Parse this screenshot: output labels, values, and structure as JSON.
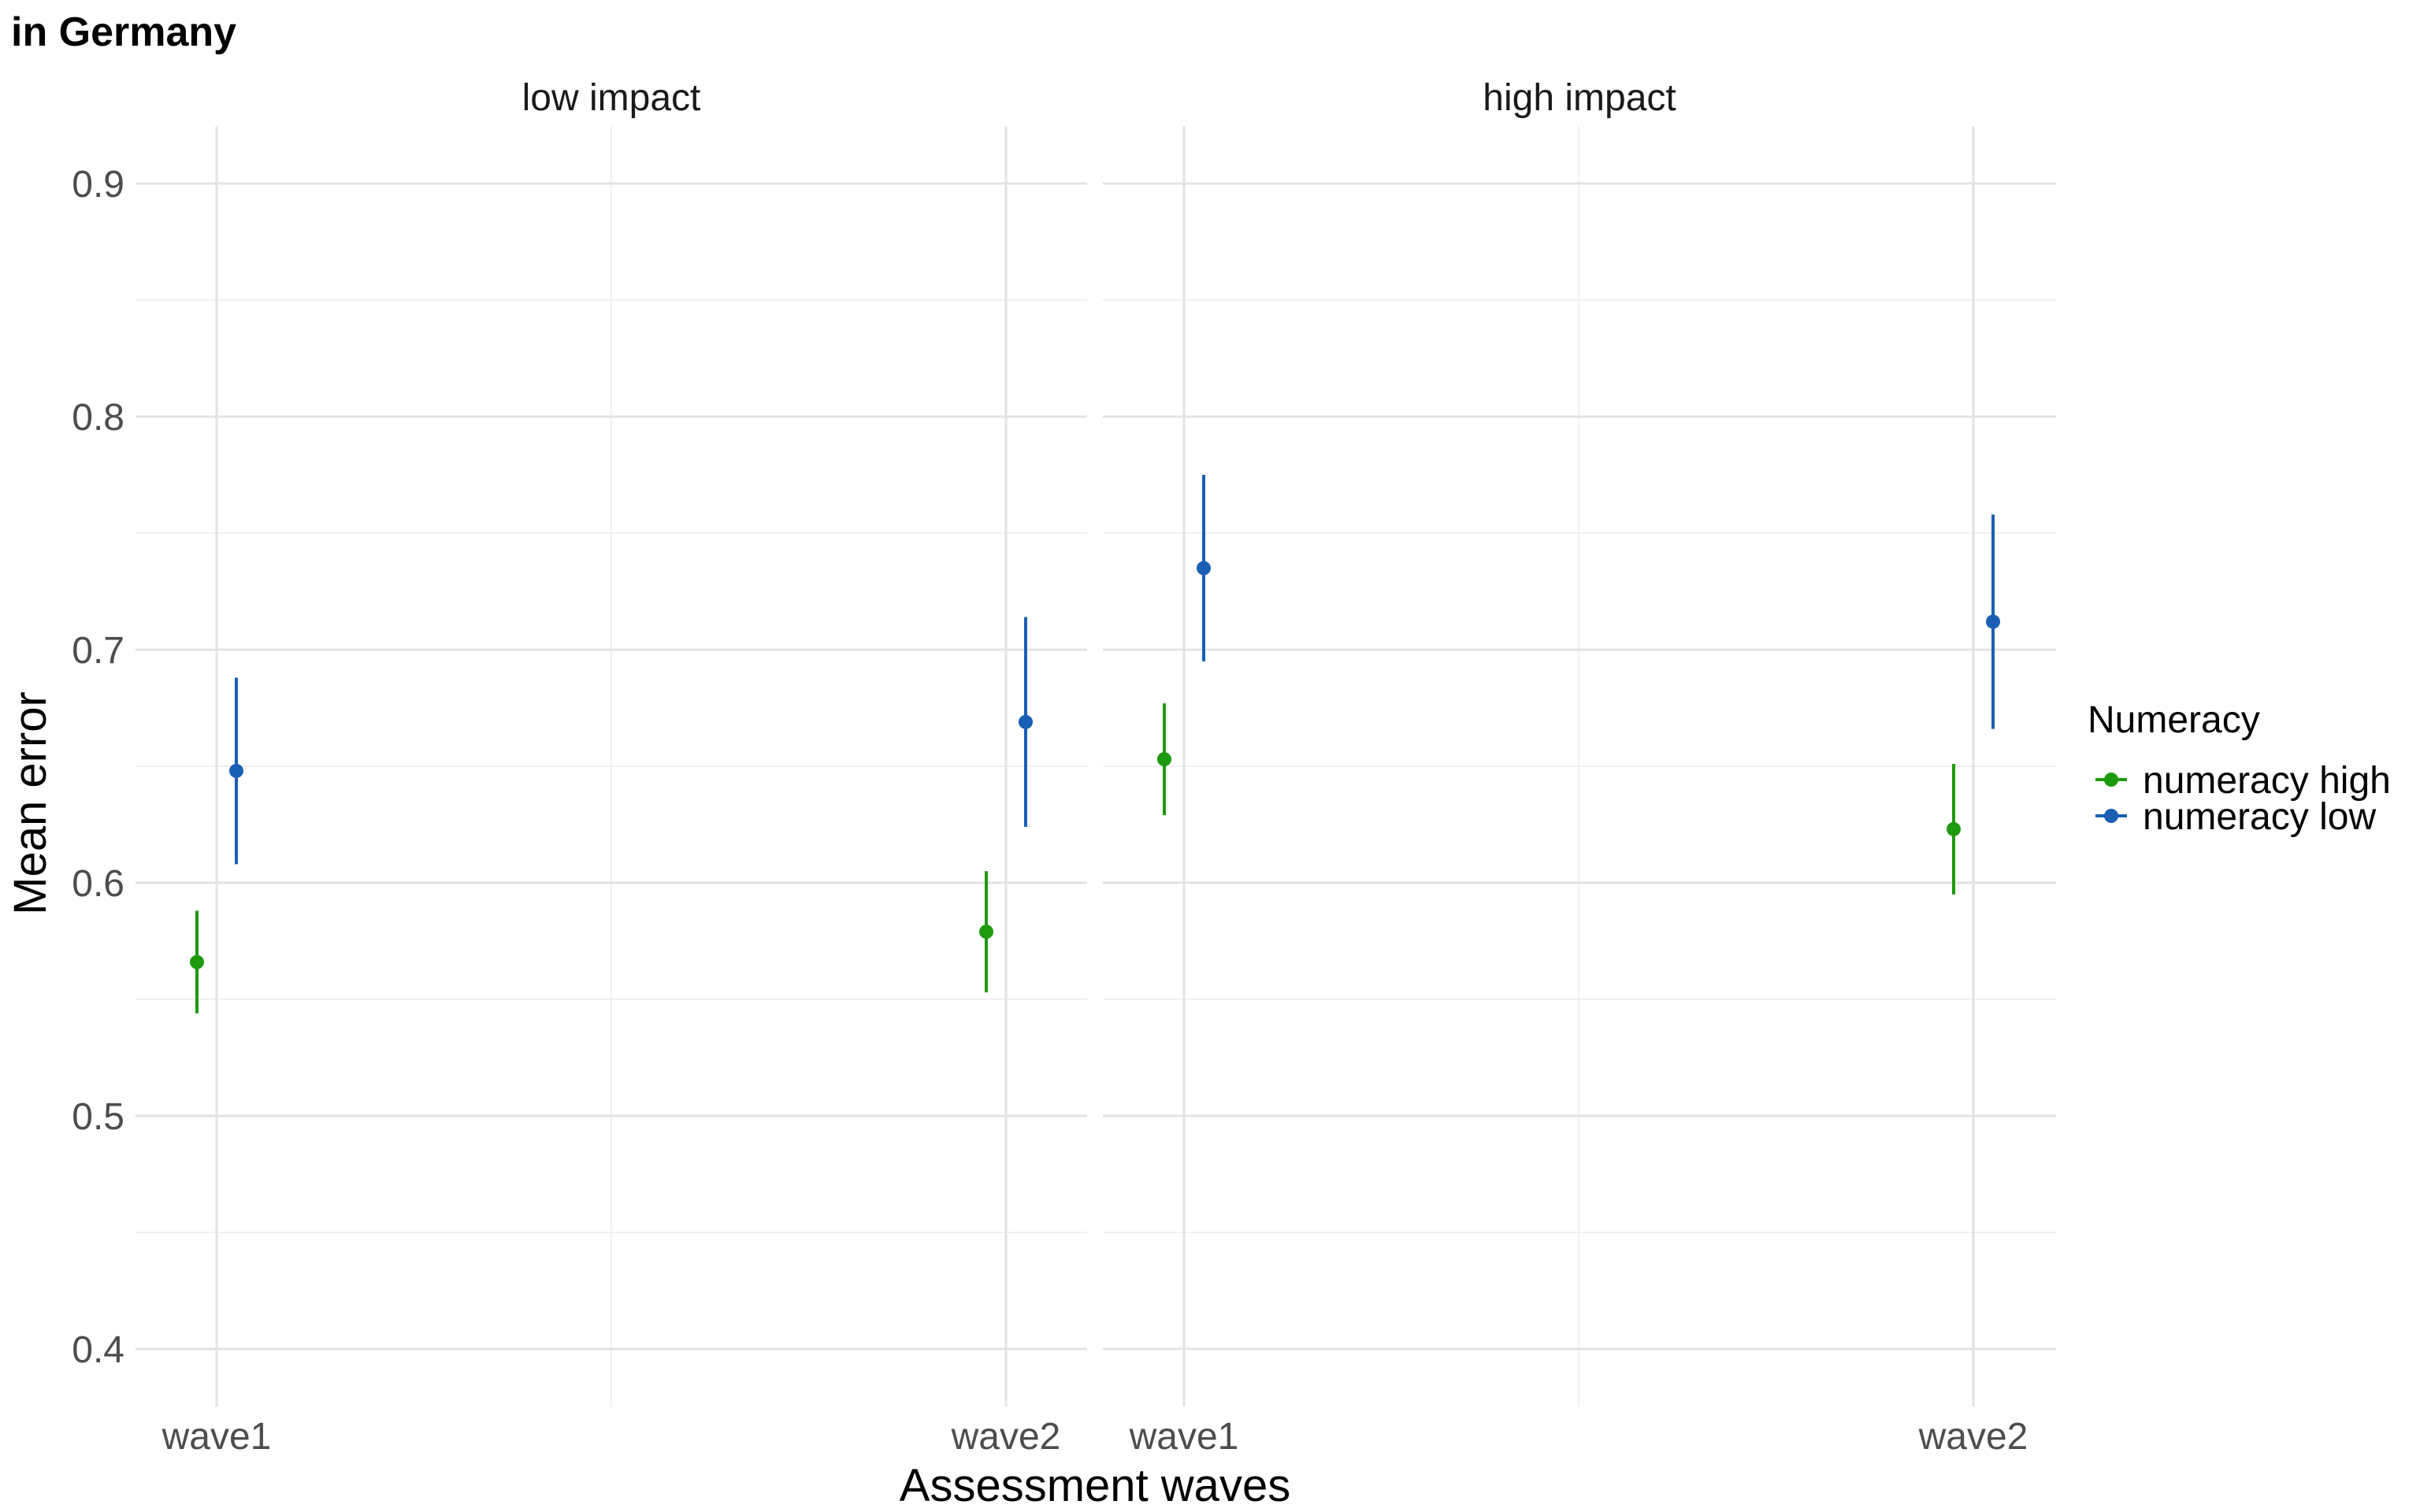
{
  "chart_data": {
    "type": "scatter",
    "title": "in Germany",
    "xlabel": "Assessment waves",
    "ylabel": "Mean error",
    "ylim": [
      0.38,
      0.925
    ],
    "yticks": [
      "0.4",
      "0.5",
      "0.6",
      "0.7",
      "0.8",
      "0.9"
    ],
    "categories": [
      "wave1",
      "wave2"
    ],
    "grid": true,
    "facets": [
      "low impact",
      "high impact"
    ],
    "legend": {
      "title": "Numeracy",
      "placement": "right"
    },
    "series": [
      {
        "name": "numeracy high",
        "color": "#1f9a0f",
        "points": [
          {
            "facet": "low impact",
            "x": "wave1",
            "y": 0.566,
            "ymin": 0.544,
            "ymax": 0.588
          },
          {
            "facet": "low impact",
            "x": "wave2",
            "y": 0.579,
            "ymin": 0.553,
            "ymax": 0.605
          },
          {
            "facet": "high impact",
            "x": "wave1",
            "y": 0.653,
            "ymin": 0.629,
            "ymax": 0.677
          },
          {
            "facet": "high impact",
            "x": "wave2",
            "y": 0.623,
            "ymin": 0.595,
            "ymax": 0.651
          }
        ]
      },
      {
        "name": "numeracy low",
        "color": "#1a5fb4",
        "points": [
          {
            "facet": "low impact",
            "x": "wave1",
            "y": 0.648,
            "ymin": 0.608,
            "ymax": 0.688
          },
          {
            "facet": "low impact",
            "x": "wave2",
            "y": 0.669,
            "ymin": 0.624,
            "ymax": 0.714
          },
          {
            "facet": "high impact",
            "x": "wave1",
            "y": 0.735,
            "ymin": 0.695,
            "ymax": 0.775
          },
          {
            "facet": "high impact",
            "x": "wave2",
            "y": 0.712,
            "ymin": 0.666,
            "ymax": 0.758
          }
        ]
      }
    ]
  }
}
